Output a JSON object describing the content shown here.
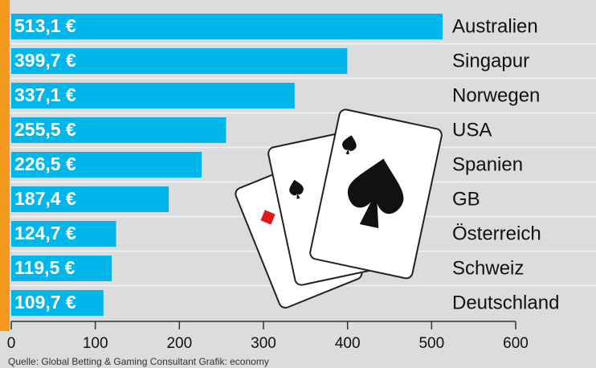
{
  "chart_data": {
    "type": "bar",
    "orientation": "horizontal",
    "categories": [
      "Australien",
      "Singapur",
      "Norwegen",
      "USA",
      "Spanien",
      "GB",
      "Österreich",
      "Schweiz",
      "Deutschland"
    ],
    "values": [
      513.1,
      399.7,
      337.1,
      255.5,
      226.5,
      187.4,
      124.7,
      119.5,
      109.7
    ],
    "value_labels": [
      "513,1 €",
      "399,7 €",
      "337,1 €",
      "255,5 €",
      "226,5 €",
      "187,4 €",
      "124,7 €",
      "119,5 €",
      "109,7 €"
    ],
    "color": "#00b6ea",
    "xlim": [
      0,
      600
    ],
    "xticks": [
      0,
      100,
      200,
      300,
      400,
      500,
      600
    ],
    "source": "Quelle: Global Betting & Gaming Consultant   Grafik: economy"
  }
}
